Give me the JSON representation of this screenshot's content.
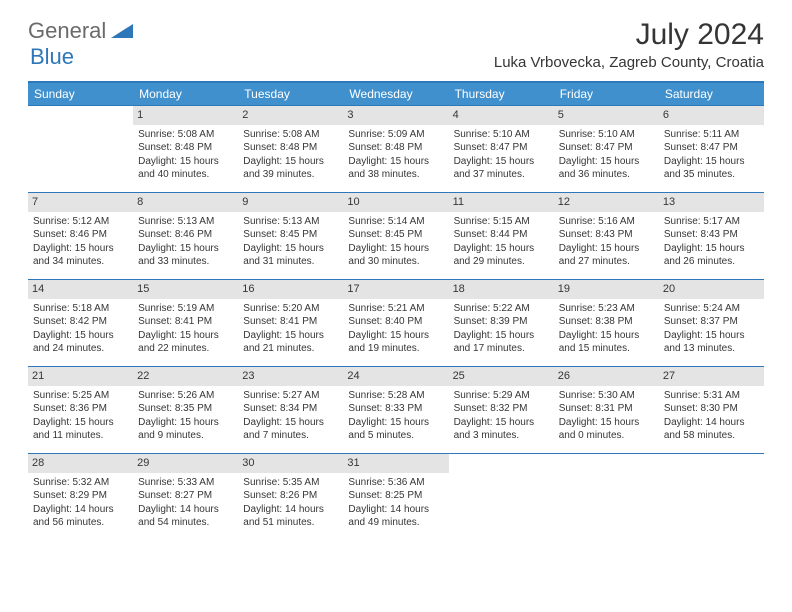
{
  "logo": {
    "general": "General",
    "blue": "Blue"
  },
  "header": {
    "month_title": "July 2024",
    "location": "Luka Vrbovecka, Zagreb County, Croatia"
  },
  "colors": {
    "header_bar": "#4090ce",
    "header_border": "#2e77b8",
    "day_number_bg": "#e4e4e4",
    "text": "#363636",
    "logo_gray": "#6a6a6a",
    "logo_blue": "#2e77b8"
  },
  "weekdays": [
    "Sunday",
    "Monday",
    "Tuesday",
    "Wednesday",
    "Thursday",
    "Friday",
    "Saturday"
  ],
  "weeks": [
    [
      {
        "day": "",
        "sunrise": "",
        "sunset": "",
        "daylight": "",
        "empty": true
      },
      {
        "day": "1",
        "sunrise": "Sunrise: 5:08 AM",
        "sunset": "Sunset: 8:48 PM",
        "daylight": "Daylight: 15 hours and 40 minutes."
      },
      {
        "day": "2",
        "sunrise": "Sunrise: 5:08 AM",
        "sunset": "Sunset: 8:48 PM",
        "daylight": "Daylight: 15 hours and 39 minutes."
      },
      {
        "day": "3",
        "sunrise": "Sunrise: 5:09 AM",
        "sunset": "Sunset: 8:48 PM",
        "daylight": "Daylight: 15 hours and 38 minutes."
      },
      {
        "day": "4",
        "sunrise": "Sunrise: 5:10 AM",
        "sunset": "Sunset: 8:47 PM",
        "daylight": "Daylight: 15 hours and 37 minutes."
      },
      {
        "day": "5",
        "sunrise": "Sunrise: 5:10 AM",
        "sunset": "Sunset: 8:47 PM",
        "daylight": "Daylight: 15 hours and 36 minutes."
      },
      {
        "day": "6",
        "sunrise": "Sunrise: 5:11 AM",
        "sunset": "Sunset: 8:47 PM",
        "daylight": "Daylight: 15 hours and 35 minutes."
      }
    ],
    [
      {
        "day": "7",
        "sunrise": "Sunrise: 5:12 AM",
        "sunset": "Sunset: 8:46 PM",
        "daylight": "Daylight: 15 hours and 34 minutes."
      },
      {
        "day": "8",
        "sunrise": "Sunrise: 5:13 AM",
        "sunset": "Sunset: 8:46 PM",
        "daylight": "Daylight: 15 hours and 33 minutes."
      },
      {
        "day": "9",
        "sunrise": "Sunrise: 5:13 AM",
        "sunset": "Sunset: 8:45 PM",
        "daylight": "Daylight: 15 hours and 31 minutes."
      },
      {
        "day": "10",
        "sunrise": "Sunrise: 5:14 AM",
        "sunset": "Sunset: 8:45 PM",
        "daylight": "Daylight: 15 hours and 30 minutes."
      },
      {
        "day": "11",
        "sunrise": "Sunrise: 5:15 AM",
        "sunset": "Sunset: 8:44 PM",
        "daylight": "Daylight: 15 hours and 29 minutes."
      },
      {
        "day": "12",
        "sunrise": "Sunrise: 5:16 AM",
        "sunset": "Sunset: 8:43 PM",
        "daylight": "Daylight: 15 hours and 27 minutes."
      },
      {
        "day": "13",
        "sunrise": "Sunrise: 5:17 AM",
        "sunset": "Sunset: 8:43 PM",
        "daylight": "Daylight: 15 hours and 26 minutes."
      }
    ],
    [
      {
        "day": "14",
        "sunrise": "Sunrise: 5:18 AM",
        "sunset": "Sunset: 8:42 PM",
        "daylight": "Daylight: 15 hours and 24 minutes."
      },
      {
        "day": "15",
        "sunrise": "Sunrise: 5:19 AM",
        "sunset": "Sunset: 8:41 PM",
        "daylight": "Daylight: 15 hours and 22 minutes."
      },
      {
        "day": "16",
        "sunrise": "Sunrise: 5:20 AM",
        "sunset": "Sunset: 8:41 PM",
        "daylight": "Daylight: 15 hours and 21 minutes."
      },
      {
        "day": "17",
        "sunrise": "Sunrise: 5:21 AM",
        "sunset": "Sunset: 8:40 PM",
        "daylight": "Daylight: 15 hours and 19 minutes."
      },
      {
        "day": "18",
        "sunrise": "Sunrise: 5:22 AM",
        "sunset": "Sunset: 8:39 PM",
        "daylight": "Daylight: 15 hours and 17 minutes."
      },
      {
        "day": "19",
        "sunrise": "Sunrise: 5:23 AM",
        "sunset": "Sunset: 8:38 PM",
        "daylight": "Daylight: 15 hours and 15 minutes."
      },
      {
        "day": "20",
        "sunrise": "Sunrise: 5:24 AM",
        "sunset": "Sunset: 8:37 PM",
        "daylight": "Daylight: 15 hours and 13 minutes."
      }
    ],
    [
      {
        "day": "21",
        "sunrise": "Sunrise: 5:25 AM",
        "sunset": "Sunset: 8:36 PM",
        "daylight": "Daylight: 15 hours and 11 minutes."
      },
      {
        "day": "22",
        "sunrise": "Sunrise: 5:26 AM",
        "sunset": "Sunset: 8:35 PM",
        "daylight": "Daylight: 15 hours and 9 minutes."
      },
      {
        "day": "23",
        "sunrise": "Sunrise: 5:27 AM",
        "sunset": "Sunset: 8:34 PM",
        "daylight": "Daylight: 15 hours and 7 minutes."
      },
      {
        "day": "24",
        "sunrise": "Sunrise: 5:28 AM",
        "sunset": "Sunset: 8:33 PM",
        "daylight": "Daylight: 15 hours and 5 minutes."
      },
      {
        "day": "25",
        "sunrise": "Sunrise: 5:29 AM",
        "sunset": "Sunset: 8:32 PM",
        "daylight": "Daylight: 15 hours and 3 minutes."
      },
      {
        "day": "26",
        "sunrise": "Sunrise: 5:30 AM",
        "sunset": "Sunset: 8:31 PM",
        "daylight": "Daylight: 15 hours and 0 minutes."
      },
      {
        "day": "27",
        "sunrise": "Sunrise: 5:31 AM",
        "sunset": "Sunset: 8:30 PM",
        "daylight": "Daylight: 14 hours and 58 minutes."
      }
    ],
    [
      {
        "day": "28",
        "sunrise": "Sunrise: 5:32 AM",
        "sunset": "Sunset: 8:29 PM",
        "daylight": "Daylight: 14 hours and 56 minutes."
      },
      {
        "day": "29",
        "sunrise": "Sunrise: 5:33 AM",
        "sunset": "Sunset: 8:27 PM",
        "daylight": "Daylight: 14 hours and 54 minutes."
      },
      {
        "day": "30",
        "sunrise": "Sunrise: 5:35 AM",
        "sunset": "Sunset: 8:26 PM",
        "daylight": "Daylight: 14 hours and 51 minutes."
      },
      {
        "day": "31",
        "sunrise": "Sunrise: 5:36 AM",
        "sunset": "Sunset: 8:25 PM",
        "daylight": "Daylight: 14 hours and 49 minutes."
      },
      {
        "day": "",
        "sunrise": "",
        "sunset": "",
        "daylight": "",
        "empty": true
      },
      {
        "day": "",
        "sunrise": "",
        "sunset": "",
        "daylight": "",
        "empty": true
      },
      {
        "day": "",
        "sunrise": "",
        "sunset": "",
        "daylight": "",
        "empty": true
      }
    ]
  ]
}
